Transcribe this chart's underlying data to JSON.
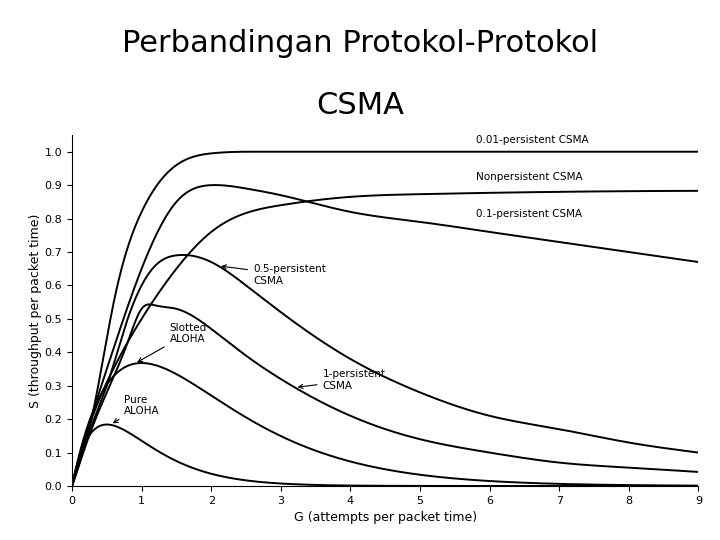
{
  "title_line1": "Perbandingan Protokol-Protokol",
  "title_line2": "CSMA",
  "xlabel": "G (attempts per packet time)",
  "ylabel": "S (throughput per packet time)",
  "xlim": [
    0,
    9
  ],
  "ylim": [
    0,
    1.05
  ],
  "xticks": [
    0,
    1,
    2,
    3,
    4,
    5,
    6,
    7,
    8,
    9
  ],
  "yticks": [
    0,
    0.1,
    0.2,
    0.3,
    0.4,
    0.5,
    0.6,
    0.7,
    0.8,
    0.9,
    1.0
  ],
  "title_fontsize": 22,
  "axis_label_fontsize": 9,
  "tick_fontsize": 8,
  "background_color": "#ffffff",
  "line_color": "#000000",
  "line_width": 1.4
}
